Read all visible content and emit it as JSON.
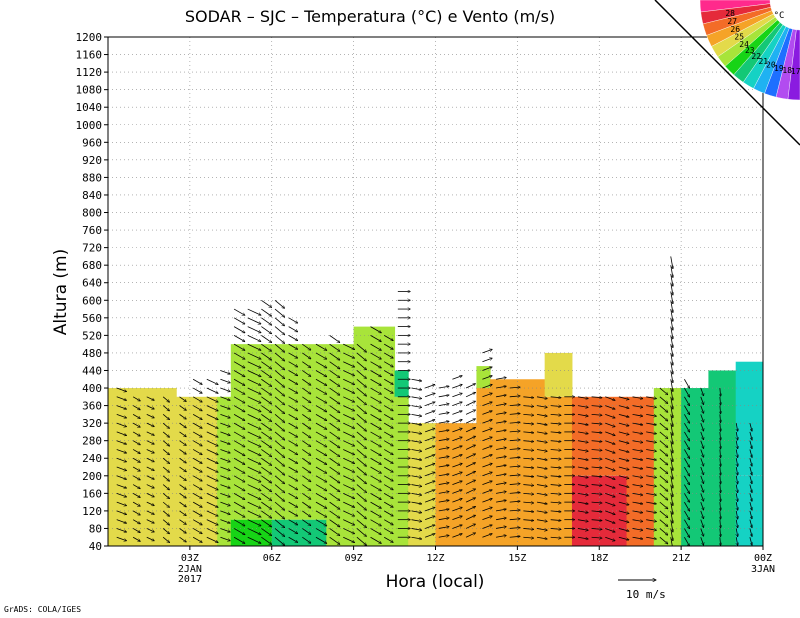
{
  "chart_data": {
    "type": "heatmap",
    "title": "SODAR – SJC – Temperatura (°C) e Vento (m/s)",
    "xlabel": "Hora (local)",
    "ylabel": "Altura (m)",
    "ylim": [
      40,
      1200
    ],
    "xlim_hours": [
      0,
      24
    ],
    "y_ticks": [
      40,
      80,
      120,
      160,
      200,
      240,
      280,
      320,
      360,
      400,
      440,
      480,
      520,
      560,
      600,
      640,
      680,
      720,
      760,
      800,
      840,
      880,
      920,
      960,
      1000,
      1040,
      1080,
      1120,
      1160,
      1200
    ],
    "x_ticks": [
      {
        "hour": 3,
        "label": "03Z",
        "sub": [
          "2JAN",
          "2017"
        ]
      },
      {
        "hour": 6,
        "label": "06Z",
        "sub": []
      },
      {
        "hour": 9,
        "label": "09Z",
        "sub": []
      },
      {
        "hour": 12,
        "label": "12Z",
        "sub": []
      },
      {
        "hour": 15,
        "label": "15Z",
        "sub": []
      },
      {
        "hour": 18,
        "label": "18Z",
        "sub": []
      },
      {
        "hour": 21,
        "label": "21Z",
        "sub": []
      },
      {
        "hour": 24,
        "label": "00Z",
        "sub": [
          "3JAN"
        ]
      }
    ],
    "grid": true,
    "colorbar": {
      "unit": "°C",
      "levels": [
        17,
        18,
        19,
        20,
        21,
        22,
        23,
        24,
        25,
        26,
        27,
        28
      ],
      "colors": [
        "#8a1be0",
        "#b24cf0",
        "#1e6fff",
        "#1fb2f2",
        "#15d2c4",
        "#13c876",
        "#17d416",
        "#a8e43a",
        "#e3da4a",
        "#f5a327",
        "#f36c27",
        "#e52a3a",
        "#ff2a8c"
      ]
    },
    "temperature_columns": [
      {
        "hours": [
          0.0,
          1.0
        ],
        "top": 400,
        "layers": [
          {
            "to": 1200,
            "t": 24.5
          }
        ]
      },
      {
        "hours": [
          1.0,
          2.5
        ],
        "top": 400,
        "layers": [
          {
            "to": 1200,
            "t": 24.5
          }
        ]
      },
      {
        "hours": [
          2.5,
          4.0
        ],
        "top": 380,
        "layers": [
          {
            "to": 100,
            "t": 24.0
          },
          {
            "to": 1200,
            "t": 24.0
          }
        ]
      },
      {
        "hours": [
          4.0,
          4.5
        ],
        "top": 380,
        "layers": [
          {
            "to": 1200,
            "t": 23.0
          }
        ]
      },
      {
        "hours": [
          4.5,
          6.0
        ],
        "top": 500,
        "layers": [
          {
            "to": 100,
            "t": 22.6
          },
          {
            "to": 1200,
            "t": 23.0
          }
        ]
      },
      {
        "hours": [
          6.0,
          8.0
        ],
        "top": 500,
        "layers": [
          {
            "to": 100,
            "t": 21.5
          },
          {
            "to": 1200,
            "t": 23.0
          }
        ]
      },
      {
        "hours": [
          8.0,
          9.0
        ],
        "top": 500,
        "layers": [
          {
            "to": 1200,
            "t": 23.0
          }
        ]
      },
      {
        "hours": [
          9.0,
          10.5
        ],
        "top": 540,
        "layers": [
          {
            "to": 1200,
            "t": 23.0
          }
        ]
      },
      {
        "hours": [
          10.5,
          11.0
        ],
        "top": 440,
        "layers": [
          {
            "to": 380,
            "t": 23.0
          },
          {
            "to": 1200,
            "t": 21.8
          }
        ]
      },
      {
        "hours": [
          11.0,
          12.0
        ],
        "top": 320,
        "layers": [
          {
            "to": 1200,
            "t": 24.4
          }
        ]
      },
      {
        "hours": [
          12.0,
          13.5
        ],
        "top": 320,
        "layers": [
          {
            "to": 1200,
            "t": 25.6
          }
        ]
      },
      {
        "hours": [
          13.5,
          14.0
        ],
        "top": 450,
        "layers": [
          {
            "to": 400,
            "t": 25.0
          },
          {
            "to": 1200,
            "t": 23.0
          }
        ]
      },
      {
        "hours": [
          14.0,
          16.0
        ],
        "top": 420,
        "layers": [
          {
            "to": 1200,
            "t": 25.8
          }
        ]
      },
      {
        "hours": [
          16.0,
          17.0
        ],
        "top": 480,
        "layers": [
          {
            "to": 380,
            "t": 25.6
          },
          {
            "to": 1200,
            "t": 24.6
          }
        ]
      },
      {
        "hours": [
          17.0,
          18.0
        ],
        "top": 380,
        "layers": [
          {
            "to": 200,
            "t": 27.5
          },
          {
            "to": 1200,
            "t": 26.6
          }
        ]
      },
      {
        "hours": [
          18.0,
          19.0
        ],
        "top": 380,
        "layers": [
          {
            "to": 200,
            "t": 27.8
          },
          {
            "to": 1200,
            "t": 26.6
          }
        ]
      },
      {
        "hours": [
          19.0,
          20.0
        ],
        "top": 380,
        "layers": [
          {
            "to": 1200,
            "t": 26.0
          }
        ]
      },
      {
        "hours": [
          20.0,
          21.0
        ],
        "top": 400,
        "layers": [
          {
            "to": 1200,
            "t": 23.0
          }
        ]
      },
      {
        "hours": [
          21.0,
          22.0
        ],
        "top": 400,
        "layers": [
          {
            "to": 1200,
            "t": 21.6
          }
        ]
      },
      {
        "hours": [
          22.0,
          23.0
        ],
        "top": 440,
        "layers": [
          {
            "to": 1200,
            "t": 21.7
          }
        ]
      },
      {
        "hours": [
          23.0,
          24.0
        ],
        "top": 460,
        "layers": [
          {
            "to": 200,
            "t": 20.4
          },
          {
            "to": 1200,
            "t": 20.7
          }
        ]
      }
    ],
    "wind_columns": [
      {
        "hour": 0.1,
        "top": 400,
        "dir": 110,
        "speed": 5
      },
      {
        "hour": 0.7,
        "top": 390,
        "dir": 120,
        "speed": 4
      },
      {
        "hour": 1.2,
        "top": 390,
        "dir": 115,
        "speed": 4
      },
      {
        "hour": 1.8,
        "top": 380,
        "dir": 130,
        "speed": 4
      },
      {
        "hour": 2.4,
        "top": 380,
        "dir": 125,
        "speed": 4
      },
      {
        "hour": 2.9,
        "top": 420,
        "dir": 120,
        "speed": 5
      },
      {
        "hour": 3.4,
        "top": 420,
        "dir": 115,
        "speed": 6
      },
      {
        "hour": 3.9,
        "top": 440,
        "dir": 110,
        "speed": 5
      },
      {
        "hour": 4.4,
        "top": 580,
        "dir": 120,
        "speed": 6
      },
      {
        "hour": 4.9,
        "top": 580,
        "dir": 115,
        "speed": 7
      },
      {
        "hour": 5.4,
        "top": 610,
        "dir": 125,
        "speed": 6
      },
      {
        "hour": 5.9,
        "top": 600,
        "dir": 130,
        "speed": 6
      },
      {
        "hour": 6.4,
        "top": 560,
        "dir": 120,
        "speed": 5
      },
      {
        "hour": 6.9,
        "top": 500,
        "dir": 125,
        "speed": 5
      },
      {
        "hour": 7.4,
        "top": 500,
        "dir": 120,
        "speed": 6
      },
      {
        "hour": 7.9,
        "top": 520,
        "dir": 125,
        "speed": 6
      },
      {
        "hour": 8.4,
        "top": 500,
        "dir": 115,
        "speed": 6
      },
      {
        "hour": 8.9,
        "top": 500,
        "dir": 130,
        "speed": 6
      },
      {
        "hour": 9.4,
        "top": 540,
        "dir": 120,
        "speed": 6
      },
      {
        "hour": 9.9,
        "top": 520,
        "dir": 120,
        "speed": 5
      },
      {
        "hour": 10.4,
        "top": 620,
        "dir": 90,
        "speed": 6
      },
      {
        "hour": 10.9,
        "top": 420,
        "dir": 100,
        "speed": 5
      },
      {
        "hour": 11.4,
        "top": 400,
        "dir": 70,
        "speed": 5
      },
      {
        "hour": 11.9,
        "top": 400,
        "dir": 80,
        "speed": 5
      },
      {
        "hour": 12.4,
        "top": 420,
        "dir": 70,
        "speed": 5
      },
      {
        "hour": 12.9,
        "top": 410,
        "dir": 65,
        "speed": 5
      },
      {
        "hour": 13.5,
        "top": 480,
        "dir": 70,
        "speed": 5
      },
      {
        "hour": 14.0,
        "top": 420,
        "dir": 80,
        "speed": 5
      },
      {
        "hour": 14.5,
        "top": 400,
        "dir": 85,
        "speed": 5
      },
      {
        "hour": 15.0,
        "top": 380,
        "dir": 95,
        "speed": 5
      },
      {
        "hour": 15.5,
        "top": 380,
        "dir": 100,
        "speed": 5
      },
      {
        "hour": 16.0,
        "top": 380,
        "dir": 95,
        "speed": 5
      },
      {
        "hour": 16.5,
        "top": 380,
        "dir": 90,
        "speed": 5
      },
      {
        "hour": 17.0,
        "top": 380,
        "dir": 100,
        "speed": 5
      },
      {
        "hour": 17.5,
        "top": 380,
        "dir": 95,
        "speed": 5
      },
      {
        "hour": 18.0,
        "top": 380,
        "dir": 110,
        "speed": 5
      },
      {
        "hour": 18.5,
        "top": 380,
        "dir": 105,
        "speed": 5
      },
      {
        "hour": 19.0,
        "top": 380,
        "dir": 100,
        "speed": 5
      },
      {
        "hour": 19.5,
        "top": 380,
        "dir": 100,
        "speed": 5
      },
      {
        "hour": 20.0,
        "top": 400,
        "dir": 130,
        "speed": 5
      },
      {
        "hour": 20.4,
        "top": 700,
        "dir": 170,
        "speed": 6
      },
      {
        "hour": 20.9,
        "top": 420,
        "dir": 150,
        "speed": 5
      },
      {
        "hour": 21.5,
        "top": 400,
        "dir": 160,
        "speed": 4
      },
      {
        "hour": 22.2,
        "top": 400,
        "dir": 175,
        "speed": 4
      },
      {
        "hour": 22.8,
        "top": 320,
        "dir": 170,
        "speed": 4
      },
      {
        "hour": 23.3,
        "top": 320,
        "dir": 165,
        "speed": 4
      },
      {
        "hour": 23.8,
        "top": 360,
        "dir": 170,
        "speed": 4
      }
    ],
    "wind_reference": {
      "speed": 10,
      "label": "10 m/s"
    }
  },
  "footer": {
    "credit": "GrADS: COLA/IGES"
  }
}
